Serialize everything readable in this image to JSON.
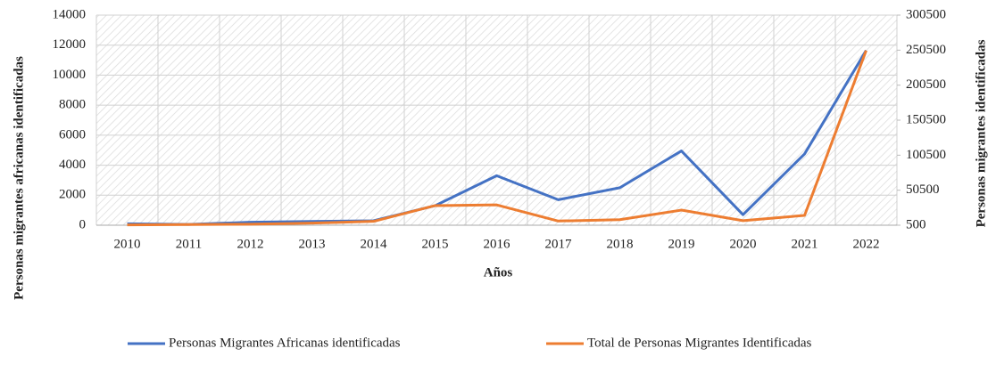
{
  "chart_data": {
    "type": "line",
    "categories": [
      "2010",
      "2011",
      "2012",
      "2013",
      "2014",
      "2015",
      "2016",
      "2017",
      "2018",
      "2019",
      "2020",
      "2021",
      "2022"
    ],
    "series": [
      {
        "name": "Personas Migrantes Africanas identificadas",
        "color": "#4472c4",
        "values": [
          100,
          50,
          200,
          250,
          300,
          1300,
          3300,
          1700,
          2500,
          4950,
          700,
          4750,
          11650
        ]
      },
      {
        "name": "Total de Personas Migrantes Identificadas",
        "color": "#ed7d31",
        "axis": "y2",
        "values": [
          1000,
          1500,
          2000,
          3500,
          6000,
          28500,
          29500,
          6500,
          8500,
          22100,
          7000,
          14500,
          250000
        ]
      }
    ],
    "xlabel": "Años",
    "ylabel": "Personas migrantes africanas identificadas",
    "y2label": "Personas migrantes identificadas",
    "ylim": [
      0,
      14000
    ],
    "yticks": [
      0,
      2000,
      4000,
      6000,
      8000,
      10000,
      12000,
      14000
    ],
    "y2lim": [
      500,
      300500
    ],
    "y2ticks": [
      500,
      50500,
      100500,
      150500,
      200500,
      250500,
      300500
    ],
    "grid": true,
    "legend": "bottom"
  }
}
